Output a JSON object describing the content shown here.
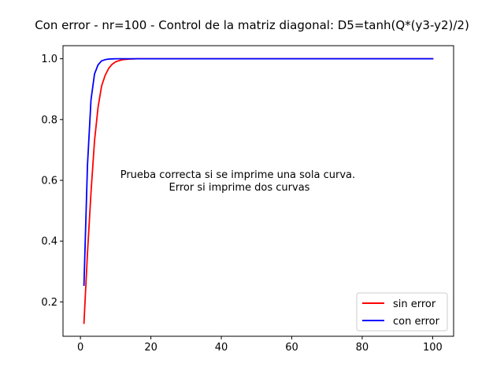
{
  "chart_data": {
    "type": "line",
    "title": "Con error - nr=100 - Control de la matriz diagonal: D5=tanh(Q*(y3-y2)/2)",
    "xlabel": "",
    "ylabel": "",
    "xlim": [
      -4.95,
      105.95
    ],
    "ylim": [
      0.0869,
      1.0431
    ],
    "xticks": [
      0,
      20,
      40,
      60,
      80,
      100
    ],
    "yticks": [
      0.2,
      0.4,
      0.6,
      0.8,
      1.0
    ],
    "xtick_labels": [
      "0",
      "20",
      "40",
      "60",
      "80",
      "100"
    ],
    "ytick_labels": [
      "0.2",
      "0.4",
      "0.6",
      "0.8",
      "1.0"
    ],
    "grid": false,
    "legend_position": "lower-right",
    "annotation": [
      "Prueba correcta si se imprime una sola curva.",
      "Error si imprime dos curvas"
    ],
    "series": [
      {
        "name": "sin error",
        "color": "#ff0000",
        "x": [
          1,
          2,
          3,
          4,
          5,
          6,
          7,
          8,
          9,
          10,
          11,
          12,
          13,
          14,
          15,
          16,
          18,
          20,
          100
        ],
        "y": [
          0.13,
          0.36,
          0.56,
          0.73,
          0.84,
          0.91,
          0.945,
          0.968,
          0.982,
          0.99,
          0.994,
          0.997,
          0.998,
          0.999,
          0.9995,
          1.0,
          1.0,
          1.0,
          1.0
        ]
      },
      {
        "name": "con error",
        "color": "#0000ff",
        "x": [
          1,
          2,
          3,
          4,
          5,
          6,
          7,
          8,
          9,
          10,
          12,
          15,
          20,
          100
        ],
        "y": [
          0.255,
          0.65,
          0.865,
          0.95,
          0.98,
          0.993,
          0.997,
          0.999,
          0.9995,
          1.0,
          1.0,
          1.0,
          1.0,
          1.0
        ]
      }
    ]
  }
}
